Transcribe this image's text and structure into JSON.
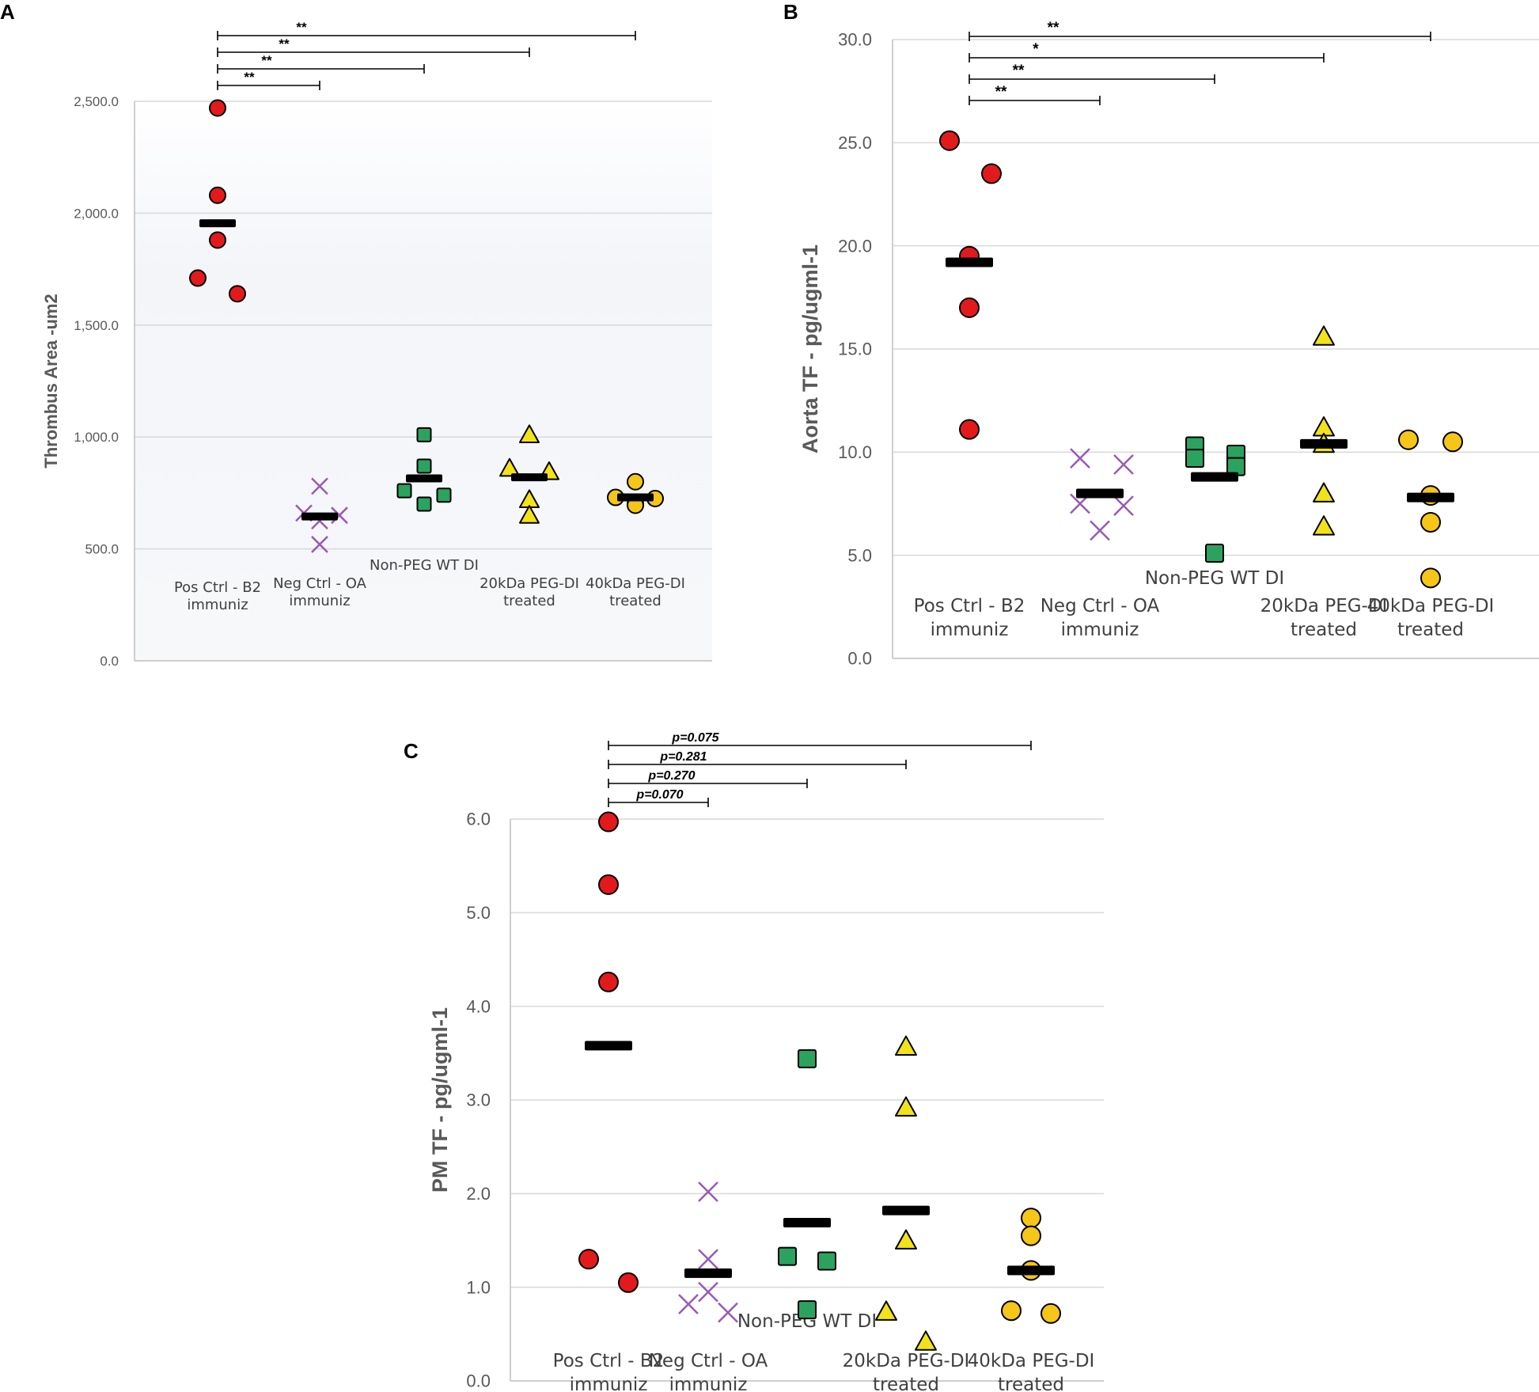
{
  "chart_data": [
    {
      "panel": "A",
      "type": "scatter",
      "ylabel": "Thrombus Area -um2",
      "ylim": [
        0,
        2500
      ],
      "yticks": [
        "0.0",
        "500.0",
        "1,000.0",
        "1,500.0",
        "2,000.0",
        "2,500.0"
      ],
      "yticks_values": [
        0,
        500,
        1000,
        1500,
        2000,
        2500
      ],
      "categories": [
        {
          "label": [
            "Pos Ctrl - B2",
            "immuniz"
          ],
          "marker": "circle",
          "color": "#e31a1c",
          "points": [
            2470,
            2080,
            1880,
            1710,
            1640
          ],
          "mean": 1955
        },
        {
          "label": [
            "Neg Ctrl - OA",
            "immuniz"
          ],
          "marker": "x",
          "color": "#9b59b6",
          "points": [
            780,
            660,
            650,
            625,
            520
          ],
          "mean": 645
        },
        {
          "label": [
            "Non-PEG WT DI"
          ],
          "marker": "square",
          "color": "#2ca25f",
          "points": [
            1010,
            870,
            760,
            740,
            700
          ],
          "mean": 815
        },
        {
          "label": [
            "20kDa PEG-DI",
            "treated"
          ],
          "marker": "triangle",
          "color": "#f2e21a",
          "points": [
            1010,
            860,
            845,
            720,
            650
          ],
          "mean": 820
        },
        {
          "label": [
            "40kDa PEG-DI",
            "treated"
          ],
          "marker": "circle",
          "color": "#f5c518",
          "points": [
            800,
            730,
            725,
            700,
            695
          ],
          "mean": 730
        }
      ],
      "significance": [
        {
          "to": 1,
          "label": "**"
        },
        {
          "to": 2,
          "label": "**"
        },
        {
          "to": 3,
          "label": "**"
        },
        {
          "to": 4,
          "label": "**"
        }
      ]
    },
    {
      "panel": "B",
      "type": "scatter",
      "ylabel": "Aorta TF - pg/ugml-1",
      "ylim": [
        0,
        30
      ],
      "yticks": [
        "0.0",
        "5.0",
        "10.0",
        "15.0",
        "20.0",
        "25.0",
        "30.0"
      ],
      "yticks_values": [
        0,
        5,
        10,
        15,
        20,
        25,
        30
      ],
      "categories": [
        {
          "label": [
            "Pos Ctrl - B2",
            "immuniz"
          ],
          "marker": "circle",
          "color": "#e31a1c",
          "points": [
            25.1,
            23.5,
            19.5,
            17.0,
            11.1
          ],
          "mean": 19.2
        },
        {
          "label": [
            "Neg Ctrl - OA",
            "immuniz"
          ],
          "marker": "x",
          "color": "#9b59b6",
          "points": [
            9.7,
            9.4,
            7.5,
            7.4,
            6.2
          ],
          "mean": 8.0
        },
        {
          "label": [
            "Non-PEG WT DI"
          ],
          "marker": "square",
          "color": "#2ca25f",
          "points": [
            10.3,
            9.9,
            9.7,
            9.3,
            5.1
          ],
          "mean": 8.8
        },
        {
          "label": [
            "20kDa PEG-DI",
            "treated"
          ],
          "marker": "triangle",
          "color": "#f2e21a",
          "points": [
            15.6,
            11.2,
            10.4,
            8.0,
            6.4
          ],
          "mean": 10.4
        },
        {
          "label": [
            "40kDa PEG-DI",
            "treated"
          ],
          "marker": "circle",
          "color": "#f5c518",
          "points": [
            10.6,
            10.5,
            7.9,
            6.6,
            3.9
          ],
          "mean": 7.8
        }
      ],
      "significance": [
        {
          "to": 1,
          "label": "**"
        },
        {
          "to": 2,
          "label": "**"
        },
        {
          "to": 3,
          "label": "*"
        },
        {
          "to": 4,
          "label": "**"
        }
      ]
    },
    {
      "panel": "C",
      "type": "scatter",
      "ylabel": "PM TF - pg/ugml-1",
      "ylim": [
        0,
        6
      ],
      "yticks": [
        "0.0",
        "1.0",
        "2.0",
        "3.0",
        "4.0",
        "5.0",
        "6.0"
      ],
      "yticks_values": [
        0,
        1,
        2,
        3,
        4,
        5,
        6
      ],
      "categories": [
        {
          "label": [
            "Pos Ctrl - B2",
            "immuniz"
          ],
          "marker": "circle",
          "color": "#e31a1c",
          "points": [
            5.97,
            5.3,
            4.26,
            1.3,
            1.05
          ],
          "mean": 3.58
        },
        {
          "label": [
            "Neg Ctrl - OA",
            "immuniz"
          ],
          "marker": "x",
          "color": "#9b59b6",
          "points": [
            2.02,
            1.3,
            0.95,
            0.82,
            0.73
          ],
          "mean": 1.15
        },
        {
          "label": [
            "Non-PEG WT DI"
          ],
          "marker": "square",
          "color": "#2ca25f",
          "points": [
            3.44,
            1.33,
            1.28,
            0.76
          ],
          "mean": 1.69
        },
        {
          "label": [
            "20kDa PEG-DI",
            "treated"
          ],
          "marker": "triangle",
          "color": "#f2e21a",
          "points": [
            3.57,
            2.92,
            1.5,
            0.74,
            0.42
          ],
          "mean": 1.82
        },
        {
          "label": [
            "40kDa PEG-DI",
            "treated"
          ],
          "marker": "circle",
          "color": "#f5c518",
          "points": [
            1.74,
            1.55,
            1.18,
            0.75,
            0.72
          ],
          "mean": 1.18
        }
      ],
      "significance": [
        {
          "to": 1,
          "label": "p=0.070"
        },
        {
          "to": 2,
          "label": "p=0.270"
        },
        {
          "to": 3,
          "label": "p=0.281"
        },
        {
          "to": 4,
          "label": "p=0.075"
        }
      ]
    }
  ]
}
